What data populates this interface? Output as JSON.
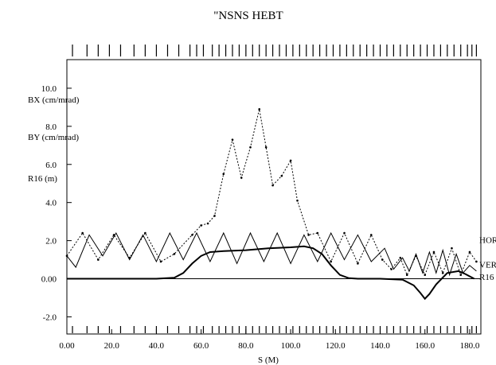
{
  "chart_data": {
    "type": "line",
    "title": "\"NSNS HEBT",
    "xlabel": "S (M)",
    "ylabels": [
      "BX (cm/mrad)",
      "BY (cm/mrad)",
      "R16 (m)"
    ],
    "xlim": [
      0,
      185
    ],
    "ylim": [
      -2.9,
      11.5
    ],
    "xticks": [
      "0.00",
      "20.0",
      "40.0",
      "60.0",
      "80.0",
      "100.0",
      "120.0",
      "140.0",
      "160.0",
      "180.0"
    ],
    "xtick_values": [
      0,
      20,
      40,
      60,
      80,
      100,
      120,
      140,
      160,
      180
    ],
    "yticks": [
      "-2.0",
      "0.00",
      "2.0",
      "4.0",
      "6.0",
      "8.0",
      "10.0"
    ],
    "ytick_values": [
      -2,
      0,
      2,
      4,
      6,
      8,
      10
    ],
    "grid": false,
    "series": [
      {
        "name": "HOR",
        "style": "dashed",
        "x": [
          0,
          7,
          14,
          21,
          28,
          35,
          42,
          48,
          56,
          60,
          63,
          66,
          70,
          74,
          78,
          82,
          86,
          89,
          92,
          96,
          100,
          103,
          108,
          112,
          118,
          124,
          130,
          136,
          141,
          145,
          149,
          152,
          156,
          160,
          164,
          168,
          172,
          176,
          180,
          183
        ],
        "y": [
          1.2,
          2.4,
          1.0,
          2.3,
          1.1,
          2.4,
          0.9,
          1.3,
          2.3,
          2.8,
          2.9,
          3.3,
          5.5,
          7.3,
          5.3,
          6.9,
          8.9,
          6.9,
          4.9,
          5.4,
          6.2,
          4.1,
          2.3,
          2.4,
          0.9,
          2.4,
          0.8,
          2.3,
          1.0,
          0.5,
          1.1,
          0.2,
          1.2,
          0.2,
          1.4,
          0.3,
          1.6,
          0.2,
          1.4,
          0.9
        ]
      },
      {
        "name": "VER",
        "style": "solid",
        "x": [
          0,
          4,
          10,
          16,
          22,
          28,
          34,
          40,
          46,
          52,
          58,
          64,
          70,
          76,
          82,
          88,
          94,
          100,
          106,
          112,
          118,
          124,
          130,
          136,
          142,
          146,
          150,
          153,
          156,
          159,
          162,
          165,
          168,
          171,
          174,
          177,
          180,
          183
        ],
        "y": [
          1.2,
          0.6,
          2.3,
          1.2,
          2.4,
          1.0,
          2.3,
          0.9,
          2.4,
          1.0,
          2.4,
          0.9,
          2.4,
          0.8,
          2.4,
          0.9,
          2.4,
          0.8,
          2.3,
          0.9,
          2.4,
          1.0,
          2.3,
          0.9,
          1.6,
          0.5,
          1.1,
          0.4,
          1.3,
          0.3,
          1.4,
          0.3,
          1.5,
          0.2,
          1.3,
          0.3,
          0.7,
          0.4
        ]
      },
      {
        "name": "R16",
        "style": "solid-thick",
        "x": [
          0,
          40,
          48,
          52,
          56,
          60,
          64,
          70,
          80,
          90,
          100,
          106,
          110,
          114,
          118,
          122,
          126,
          130,
          140,
          150,
          155,
          158,
          160,
          162,
          165,
          170,
          175,
          178,
          182
        ],
        "y": [
          0,
          0,
          0.05,
          0.3,
          0.8,
          1.2,
          1.4,
          1.45,
          1.5,
          1.6,
          1.65,
          1.7,
          1.6,
          1.3,
          0.7,
          0.2,
          0.03,
          0,
          0,
          -0.05,
          -0.35,
          -0.75,
          -1.05,
          -0.8,
          -0.3,
          0.3,
          0.4,
          0.25,
          0.0
        ]
      }
    ],
    "element_marks": [
      2.5,
      9,
      14,
      19,
      24,
      30,
      35,
      40,
      45,
      50,
      55,
      58,
      61,
      65,
      68,
      71,
      74,
      77,
      80,
      83,
      86,
      89,
      92,
      95,
      98,
      101,
      104,
      107,
      110,
      113,
      116,
      119,
      122,
      125,
      128,
      131,
      134,
      137,
      140,
      143,
      146,
      149,
      152,
      155,
      158,
      161,
      164,
      167,
      170,
      173,
      176,
      179,
      181,
      183
    ]
  }
}
